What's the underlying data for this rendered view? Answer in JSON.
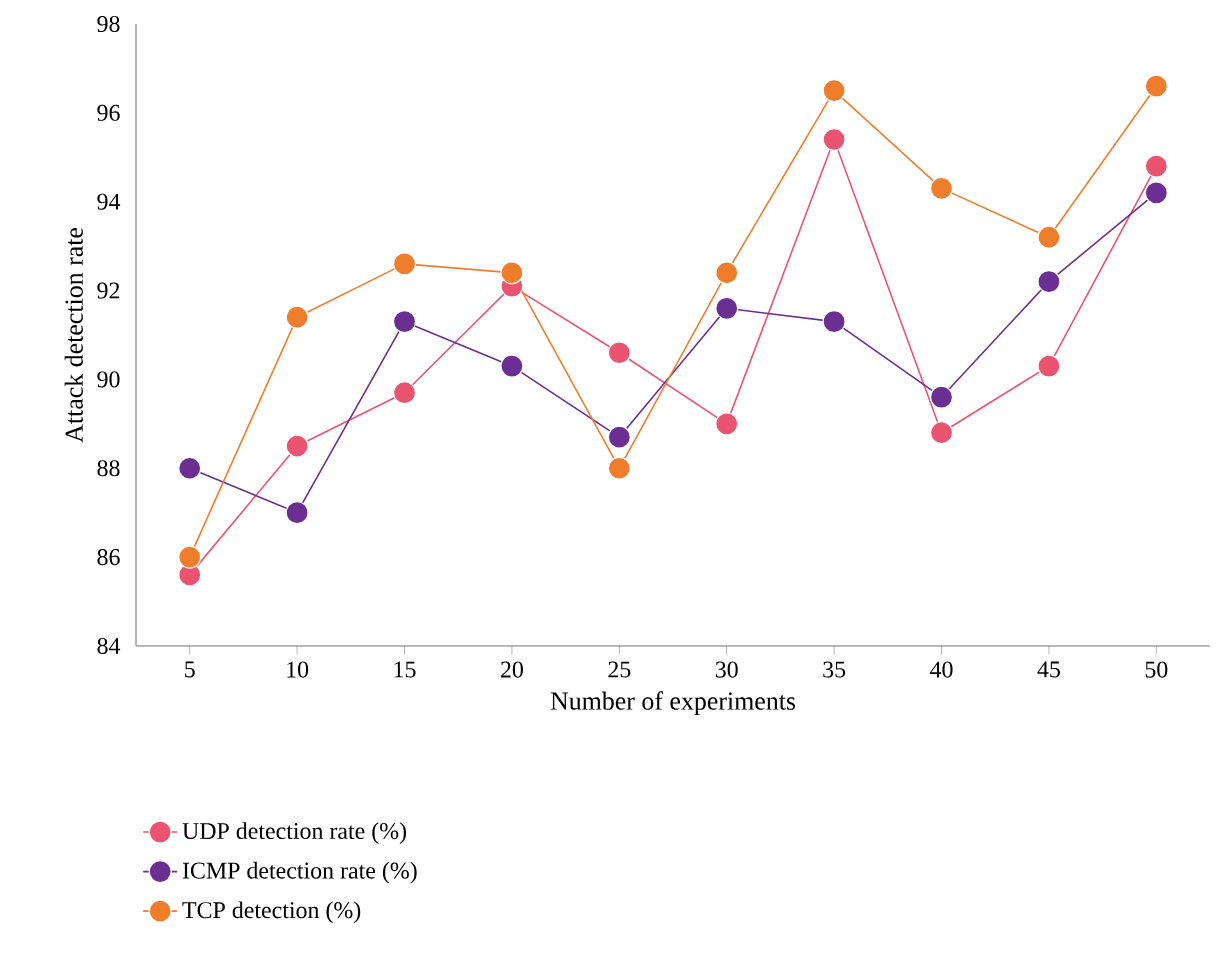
{
  "chart_data": {
    "type": "line",
    "xlabel": "Number of experiments",
    "ylabel": "Attack detection rate",
    "categories": [
      "5",
      "10",
      "15",
      "20",
      "25",
      "30",
      "35",
      "40",
      "45",
      "50"
    ],
    "series": [
      {
        "name": "UDP detection rate (%)",
        "color": "#ea5470",
        "values": [
          85.6,
          88.5,
          89.7,
          92.1,
          90.6,
          89.0,
          95.4,
          88.8,
          90.3,
          94.8
        ]
      },
      {
        "name": "ICMP detection rate (%)",
        "color": "#6b2f93",
        "values": [
          88.0,
          87.0,
          91.3,
          90.3,
          88.7,
          91.6,
          91.3,
          89.6,
          92.2,
          94.2
        ]
      },
      {
        "name": "TCP detection (%)",
        "color": "#f07d2c",
        "values": [
          86.0,
          91.4,
          92.6,
          92.4,
          88.0,
          92.4,
          96.5,
          94.3,
          93.2,
          96.6
        ]
      }
    ],
    "ylim": [
      84,
      98
    ],
    "yticks": [
      84,
      86,
      88,
      90,
      92,
      94,
      96,
      98
    ],
    "grid": false,
    "legend": "bottom",
    "marker": "circle",
    "line_style": "solid"
  }
}
